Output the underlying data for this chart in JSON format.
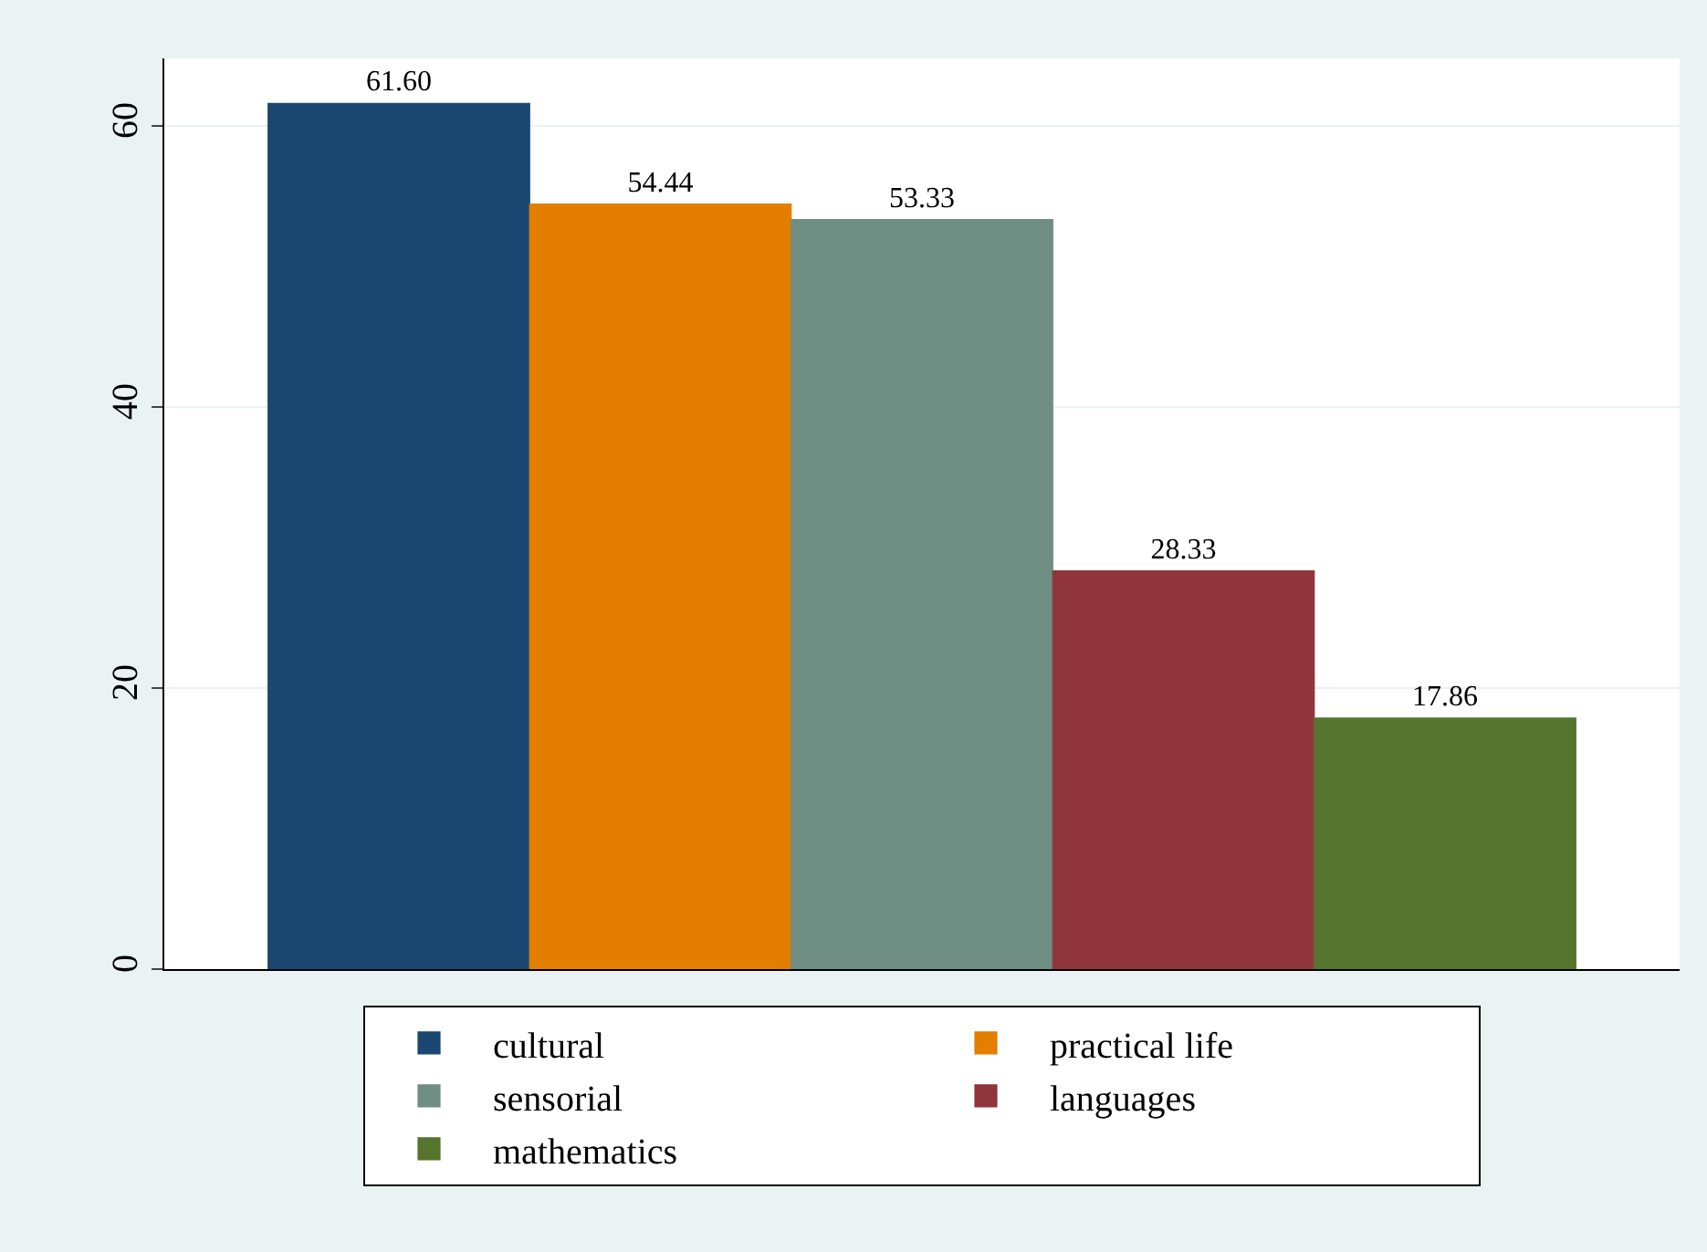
{
  "chart_data": {
    "type": "bar",
    "categories": [
      null
    ],
    "series": [
      {
        "name": "cultural",
        "color": "#1a476f",
        "values": [
          61.6
        ],
        "value_labels": [
          "61.60"
        ]
      },
      {
        "name": "practical life",
        "color": "#e37e00",
        "values": [
          54.44
        ],
        "value_labels": [
          "54.44"
        ]
      },
      {
        "name": "sensorial",
        "color": "#6e8e84",
        "values": [
          53.33
        ],
        "value_labels": [
          "53.33"
        ]
      },
      {
        "name": "languages",
        "color": "#90353b",
        "values": [
          28.33
        ],
        "value_labels": [
          "28.33"
        ]
      },
      {
        "name": "mathematics",
        "color": "#55752f",
        "values": [
          17.86
        ],
        "value_labels": [
          "17.86"
        ]
      }
    ],
    "ylim": [
      0,
      64.8
    ],
    "yticks": [
      0,
      20,
      40,
      60
    ],
    "grid": "y",
    "legend": "bottom",
    "tick_labels": "y"
  }
}
